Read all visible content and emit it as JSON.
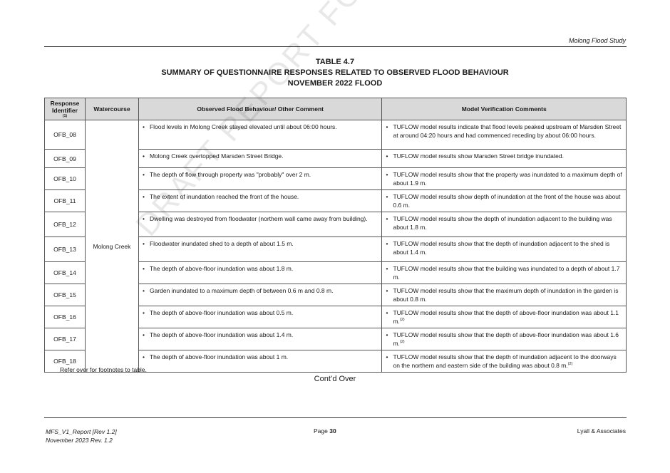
{
  "header": {
    "title": "Molong Flood Study"
  },
  "table_title": {
    "line1": "TABLE 4.7",
    "line2": "SUMMARY OF QUESTIONNAIRE RESPONSES RELATED TO OBSERVED FLOOD BEHAVIOUR",
    "line3": "NOVEMBER 2022 FLOOD"
  },
  "columns": {
    "id": "Response Identifier",
    "id_note": "(1)",
    "watercourse": "Watercourse",
    "observed": "Observed Flood Behaviour/ Other Comment",
    "model": "Model Verification Comments"
  },
  "watercourse": "Molong Creek",
  "rows": [
    {
      "id": "OFB_08",
      "observed": "Flood levels in Molong Creek stayed elevated until about 06:00 hours.",
      "model": "TUFLOW model results indicate that flood levels peaked upstream of Marsden Street at around 04:20 hours and had commenced receding by about 06:00 hours.",
      "note": ""
    },
    {
      "id": "OFB_09",
      "observed": "Molong Creek overtopped Marsden Street Bridge.",
      "model": "TUFLOW model results show Marsden Street bridge inundated.",
      "note": ""
    },
    {
      "id": "OFB_10",
      "observed": "The depth of flow through property was \"probably\" over 2 m.",
      "model": "TUFLOW model results show that the property was inundated to a maximum depth of about 1.9 m.",
      "note": ""
    },
    {
      "id": "OFB_11",
      "observed": "The extent of inundation reached the front of the house.",
      "model": "TUFLOW model results show depth of inundation at the front of the house was about 0.6 m.",
      "note": ""
    },
    {
      "id": "OFB_12",
      "observed": "Dwelling was destroyed from floodwater (northern wall came away from building).",
      "model": "TUFLOW model results show the depth of inundation adjacent to the building was about 1.8 m.",
      "note": ""
    },
    {
      "id": "OFB_13",
      "observed": "Floodwater inundated shed to a depth of about 1.5 m.",
      "model": "TUFLOW model results show that the depth of inundation adjacent to the shed is about 1.4 m.",
      "note": ""
    },
    {
      "id": "OFB_14",
      "observed": "The depth of above-floor inundation was about 1.8 m.",
      "model": "TUFLOW model results show that the building was inundated to a depth of about 1.7 m.",
      "note": ""
    },
    {
      "id": "OFB_15",
      "observed": "Garden inundated to a maximum depth of between 0.6 m and 0.8 m.",
      "model": "TUFLOW model results show  that the maximum depth of inundation in the garden is about 0.8 m.",
      "note": ""
    },
    {
      "id": "OFB_16",
      "observed": "The depth of above-floor inundation was about 0.5 m.",
      "model": "TUFLOW model results show that the depth of above-floor inundation was about 1.1 m.",
      "note": "(2)"
    },
    {
      "id": "OFB_17",
      "observed": "The depth of above-floor inundation was about 1.4 m.",
      "model": "TUFLOW model results show that the depth of above-floor inundation was about 1.6 m.",
      "note": "(2)"
    },
    {
      "id": "OFB_18",
      "observed": "The depth of above-floor inundation was about 1 m.",
      "model": "TUFLOW model results show that the depth of inundation adjacent to the doorways on the northern and eastern side of the building was about 0.8 m.",
      "note": "(2)"
    }
  ],
  "footnote": "Refer over for footnotes to table.",
  "contd": "Cont’d Over",
  "watermark": "DRAFT REPORT FOR PUBLIC EXHIBITION",
  "footer": {
    "left_line1": "MFS_V1_Report [Rev 1.2]",
    "left_line2": "November 2023   Rev. 1.2",
    "page_label": "Page",
    "page_number": "30",
    "right": "Lyall & Associates"
  }
}
